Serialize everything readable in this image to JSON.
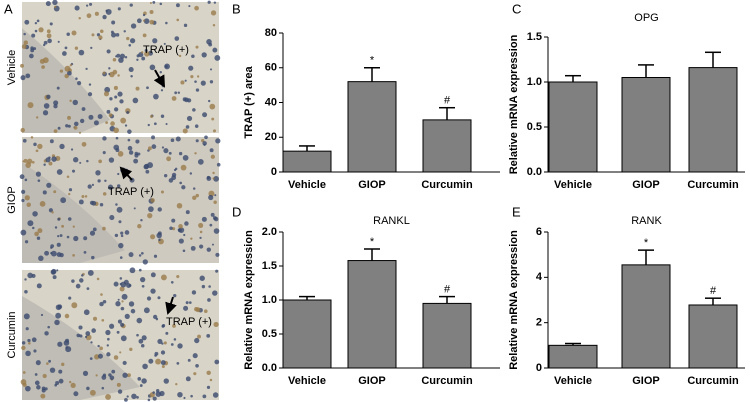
{
  "panel_a": {
    "letter": "A",
    "images": [
      {
        "label": "Vehicle",
        "annotation": "TRAP (+)"
      },
      {
        "label": "GIOP",
        "annotation": "TRAP (+)"
      },
      {
        "label": "Curcumin",
        "annotation": "TRAP (+)"
      }
    ]
  },
  "chart_data": [
    {
      "type": "bar",
      "letter": "B",
      "y_label": "TRAP (+) area",
      "categories": [
        "Vehicle",
        "GIOP",
        "Curcumin"
      ],
      "values": [
        12,
        52,
        30
      ],
      "errors": [
        3,
        8,
        7
      ],
      "significance": [
        null,
        "*",
        "#"
      ],
      "color": "#808080",
      "ylim": [
        0,
        80
      ],
      "yticks": [
        0,
        20,
        40,
        60,
        80
      ]
    },
    {
      "type": "bar",
      "letter": "C",
      "title": "OPG",
      "y_label": "Relative mRNA expression",
      "categories": [
        "Vehicle",
        "GIOP",
        "Curcumin"
      ],
      "values": [
        1.0,
        1.05,
        1.16
      ],
      "errors": [
        0.07,
        0.14,
        0.17
      ],
      "color": "#808080",
      "ylim": [
        0,
        1.5
      ],
      "yticks": [
        {
          "value": 0,
          "label": "0.0"
        },
        0.5,
        {
          "value": 1,
          "label": "1.0"
        },
        1.5
      ]
    },
    {
      "type": "bar",
      "letter": "D",
      "title": "RANKL",
      "y_label": "Relative mRNA expression",
      "categories": [
        "Vehicle",
        "GIOP",
        "Curcumin"
      ],
      "values": [
        1.0,
        1.58,
        0.95
      ],
      "errors": [
        0.05,
        0.17,
        0.1
      ],
      "significance": [
        null,
        "*",
        "#"
      ],
      "color": "#808080",
      "ylim": [
        0,
        2
      ],
      "yticks": [
        {
          "value": 0,
          "label": "0.0"
        },
        0.5,
        {
          "value": 1,
          "label": "1.0"
        },
        1.5,
        {
          "value": 2,
          "label": "2.0"
        }
      ]
    },
    {
      "type": "bar",
      "letter": "E",
      "title": "RANK",
      "y_label": "Relative mRNA expression",
      "categories": [
        "Vehicle",
        "GIOP",
        "Curcumin"
      ],
      "values": [
        1.0,
        4.55,
        2.78
      ],
      "errors": [
        0.08,
        0.65,
        0.3
      ],
      "significance": [
        null,
        "*",
        "#"
      ],
      "color": "#808080",
      "ylim": [
        0,
        6
      ],
      "yticks": [
        0,
        2,
        4,
        6
      ]
    }
  ]
}
